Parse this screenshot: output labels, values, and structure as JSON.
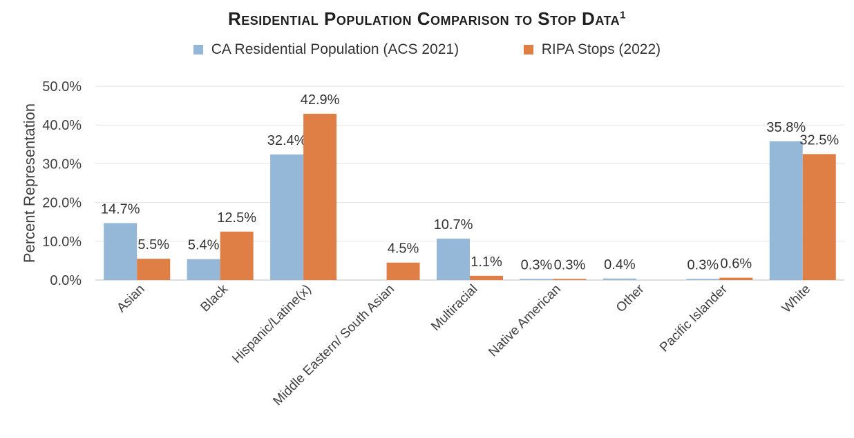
{
  "chart_data": {
    "type": "bar",
    "title": "Residential Population Comparison to Stop Data",
    "title_superscript": "1",
    "xlabel": "",
    "ylabel": "Percent Representation",
    "ylim": [
      0,
      50
    ],
    "yticks": [
      "0.0%",
      "10.0%",
      "20.0%",
      "30.0%",
      "40.0%",
      "50.0%"
    ],
    "grid": true,
    "legend": "top",
    "categories": [
      "Asian",
      "Black",
      "Hispanic/Latine(x)",
      "Middle Eastern/ South Asian",
      "Multiracial",
      "Native American",
      "Other",
      "Pacific Islander",
      "White"
    ],
    "series": [
      {
        "name": "CA Residential Population (ACS 2021)",
        "color": "#95b8d8",
        "values": [
          14.7,
          5.4,
          32.4,
          null,
          10.7,
          0.3,
          0.4,
          0.3,
          35.8
        ],
        "labels": [
          "14.7%",
          "5.4%",
          "32.4%",
          "",
          "10.7%",
          "0.3%",
          "0.4%",
          "0.3%",
          "35.8%"
        ]
      },
      {
        "name": "RIPA Stops (2022)",
        "color": "#e07f45",
        "values": [
          5.5,
          12.5,
          42.9,
          4.5,
          1.1,
          0.3,
          null,
          0.6,
          32.5
        ],
        "labels": [
          "5.5%",
          "12.5%",
          "42.9%",
          "4.5%",
          "1.1%",
          "0.3%",
          "",
          "0.6%",
          "32.5%"
        ]
      }
    ]
  }
}
